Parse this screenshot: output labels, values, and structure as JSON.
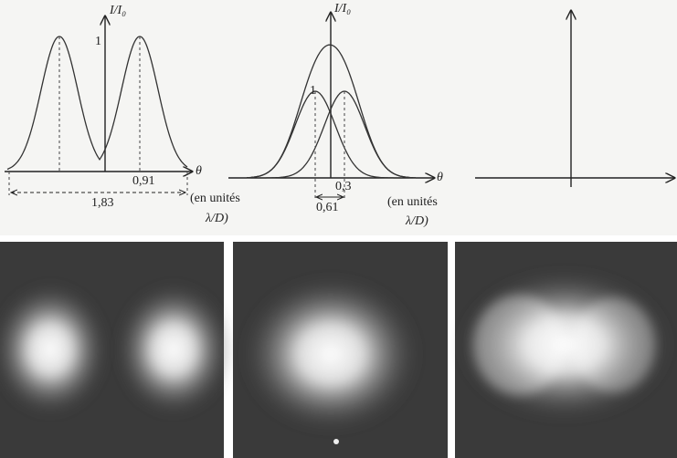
{
  "panels": [
    {
      "y_label": "I/I₀",
      "peak_label": "1",
      "x_label": "θ",
      "half_label": "0,91",
      "separation_label": "1,83",
      "units": [
        "(en unités",
        "λ/D)"
      ]
    },
    {
      "y_label": "I/I₀",
      "peak_label": "1",
      "x_label": "θ",
      "half_label": "0,3",
      "separation_label": "0,61",
      "units": [
        "(en unités",
        "λ/D)"
      ]
    }
  ]
}
